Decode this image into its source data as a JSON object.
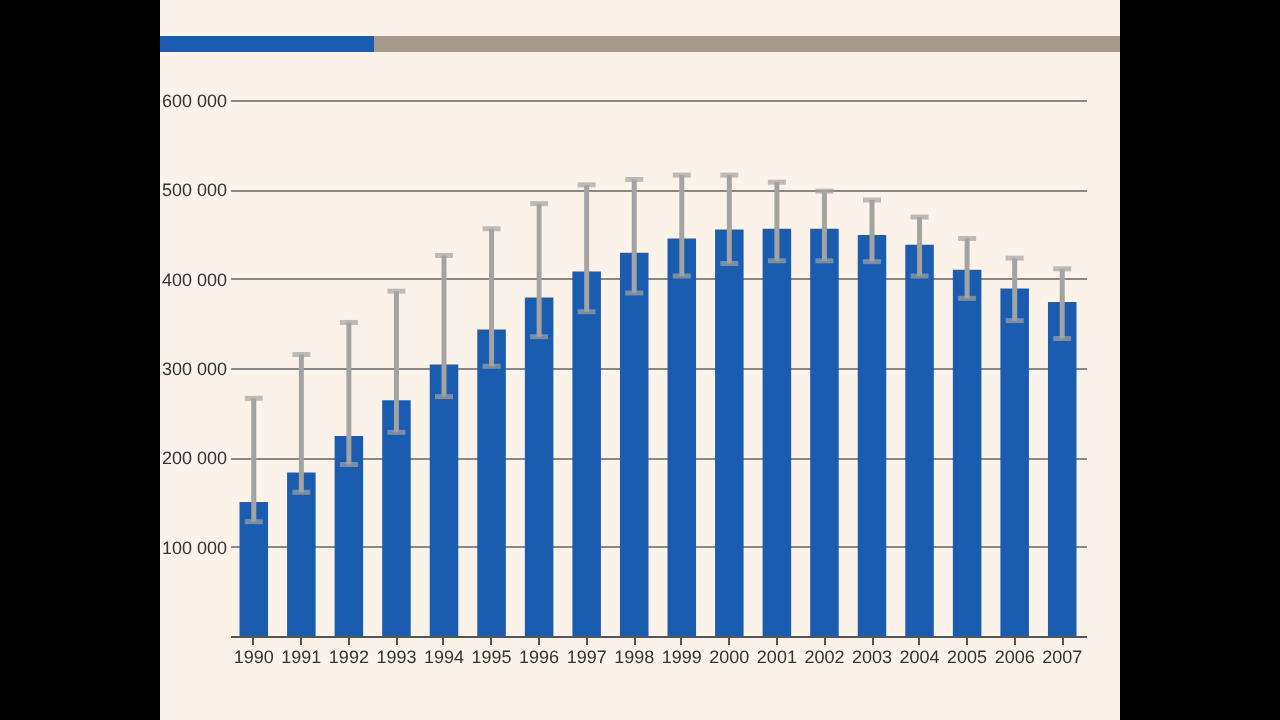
{
  "chart_data": {
    "type": "bar",
    "categories": [
      "1990",
      "1991",
      "1992",
      "1993",
      "1994",
      "1995",
      "1996",
      "1997",
      "1998",
      "1999",
      "2000",
      "2001",
      "2002",
      "2003",
      "2004",
      "2005",
      "2006",
      "2007"
    ],
    "values": [
      150000,
      183000,
      224000,
      264000,
      304000,
      343000,
      379000,
      408000,
      429000,
      445000,
      455000,
      456000,
      456000,
      449000,
      438000,
      410000,
      389000,
      374000
    ],
    "errors": [
      [
        128000,
        266000
      ],
      [
        161000,
        315000
      ],
      [
        192000,
        351000
      ],
      [
        228000,
        386000
      ],
      [
        268000,
        426000
      ],
      [
        302000,
        456000
      ],
      [
        335000,
        484000
      ],
      [
        363000,
        505000
      ],
      [
        384000,
        511000
      ],
      [
        403000,
        516000
      ],
      [
        417000,
        516000
      ],
      [
        420000,
        508000
      ],
      [
        420000,
        498000
      ],
      [
        419000,
        488000
      ],
      [
        403000,
        469000
      ],
      [
        378000,
        445000
      ],
      [
        353000,
        423000
      ],
      [
        333000,
        411000
      ]
    ],
    "color": "#1a5cb0",
    "ylim": [
      0,
      600000
    ],
    "yticks": [
      {
        "value": 0,
        "label": null
      },
      {
        "value": 100000,
        "label": "100 000"
      },
      {
        "value": 200000,
        "label": "200 000"
      },
      {
        "value": 300000,
        "label": "300 000"
      },
      {
        "value": 400000,
        "label": "400 000"
      },
      {
        "value": 500000,
        "label": "500 000"
      },
      {
        "value": 600000,
        "label": "600 000"
      }
    ],
    "grid": "y"
  }
}
